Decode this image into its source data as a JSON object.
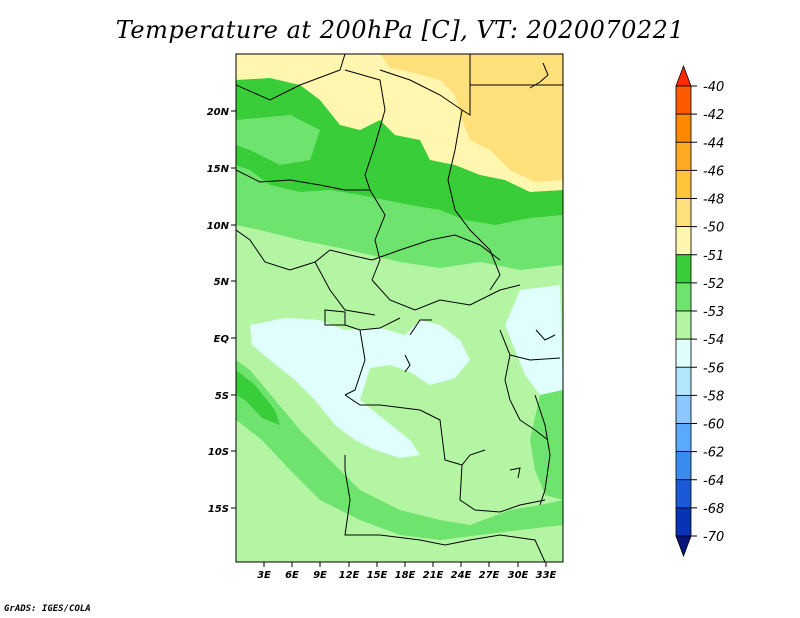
{
  "title": "Temperature at 200hPa [C], VT: 2020070221",
  "credit": "GrADS: IGES/COLA",
  "map": {
    "lon_labels": [
      "3E",
      "6E",
      "9E",
      "12E",
      "15E",
      "18E",
      "21E",
      "24E",
      "27E",
      "30E",
      "33E"
    ],
    "lat_labels": [
      "20N",
      "15N",
      "10N",
      "5N",
      "EQ",
      "5S",
      "10S",
      "15S"
    ]
  },
  "colorbar": {
    "labels": [
      "-40",
      "-42",
      "-44",
      "-46",
      "-48",
      "-50",
      "-51",
      "-52",
      "-53",
      "-54",
      "-56",
      "-58",
      "-60",
      "-62",
      "-64",
      "-68",
      "-70"
    ],
    "colors": [
      "#ff2a00",
      "#ff5a00",
      "#ff8a00",
      "#ffaa22",
      "#ffc43c",
      "#ffe07a",
      "#fff6b0",
      "#3acd3a",
      "#6ee46e",
      "#b4f5a4",
      "#e0fffc",
      "#b4e6ff",
      "#8cc8ff",
      "#5aa8ff",
      "#3a8cf0",
      "#1a5ad8",
      "#0a32b4",
      "#06147a"
    ]
  }
}
